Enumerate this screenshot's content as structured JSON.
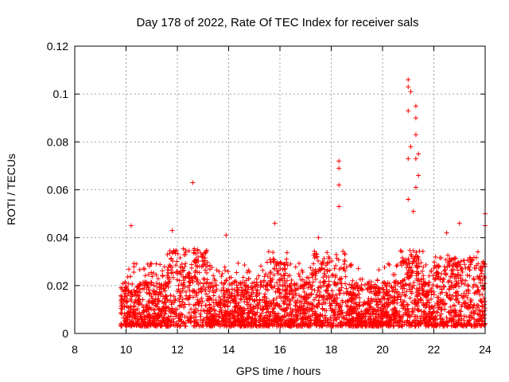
{
  "chart_data": {
    "type": "scatter",
    "title": "Day 178 of 2022, Rate Of TEC Index for receiver sals",
    "xlabel": "GPS time / hours",
    "ylabel": "ROTI / TECUs",
    "xlim": [
      8,
      24
    ],
    "ylim": [
      0,
      0.12
    ],
    "x_ticks": [
      8,
      10,
      12,
      14,
      16,
      18,
      20,
      22,
      24
    ],
    "x_tick_labels": [
      "8",
      "10",
      "12",
      "14",
      "16",
      "18",
      "20",
      "22",
      "24"
    ],
    "y_ticks": [
      0,
      0.02,
      0.04,
      0.06,
      0.08,
      0.1,
      0.12
    ],
    "y_tick_labels": [
      "0",
      "0.02",
      "0.04",
      "0.06",
      "0.08",
      "0.1",
      "0.12"
    ],
    "grid": true,
    "marker": "+",
    "series": [
      {
        "name": "ROTI",
        "color": "#ff0000",
        "x_range": [
          9.8,
          24.0
        ],
        "typical_range": [
          0.003,
          0.03
        ],
        "peaks": [
          {
            "x": 10.2,
            "y": 0.045
          },
          {
            "x": 11.8,
            "y": 0.043
          },
          {
            "x": 12.6,
            "y": 0.063
          },
          {
            "x": 13.9,
            "y": 0.041
          },
          {
            "x": 15.8,
            "y": 0.046
          },
          {
            "x": 17.5,
            "y": 0.04
          },
          {
            "x": 18.3,
            "y": 0.072
          },
          {
            "x": 18.3,
            "y": 0.069
          },
          {
            "x": 18.3,
            "y": 0.062
          },
          {
            "x": 18.3,
            "y": 0.053
          },
          {
            "x": 21.0,
            "y": 0.106
          },
          {
            "x": 21.0,
            "y": 0.103
          },
          {
            "x": 21.1,
            "y": 0.101
          },
          {
            "x": 21.3,
            "y": 0.095
          },
          {
            "x": 21.3,
            "y": 0.09
          },
          {
            "x": 21.0,
            "y": 0.093
          },
          {
            "x": 21.3,
            "y": 0.083
          },
          {
            "x": 21.1,
            "y": 0.078
          },
          {
            "x": 21.4,
            "y": 0.075
          },
          {
            "x": 21.0,
            "y": 0.073
          },
          {
            "x": 21.3,
            "y": 0.073
          },
          {
            "x": 21.4,
            "y": 0.066
          },
          {
            "x": 21.3,
            "y": 0.061
          },
          {
            "x": 21.0,
            "y": 0.056
          },
          {
            "x": 21.2,
            "y": 0.051
          },
          {
            "x": 22.5,
            "y": 0.042
          },
          {
            "x": 23.0,
            "y": 0.046
          },
          {
            "x": 24.0,
            "y": 0.05
          },
          {
            "x": 24.0,
            "y": 0.045
          }
        ]
      }
    ]
  }
}
